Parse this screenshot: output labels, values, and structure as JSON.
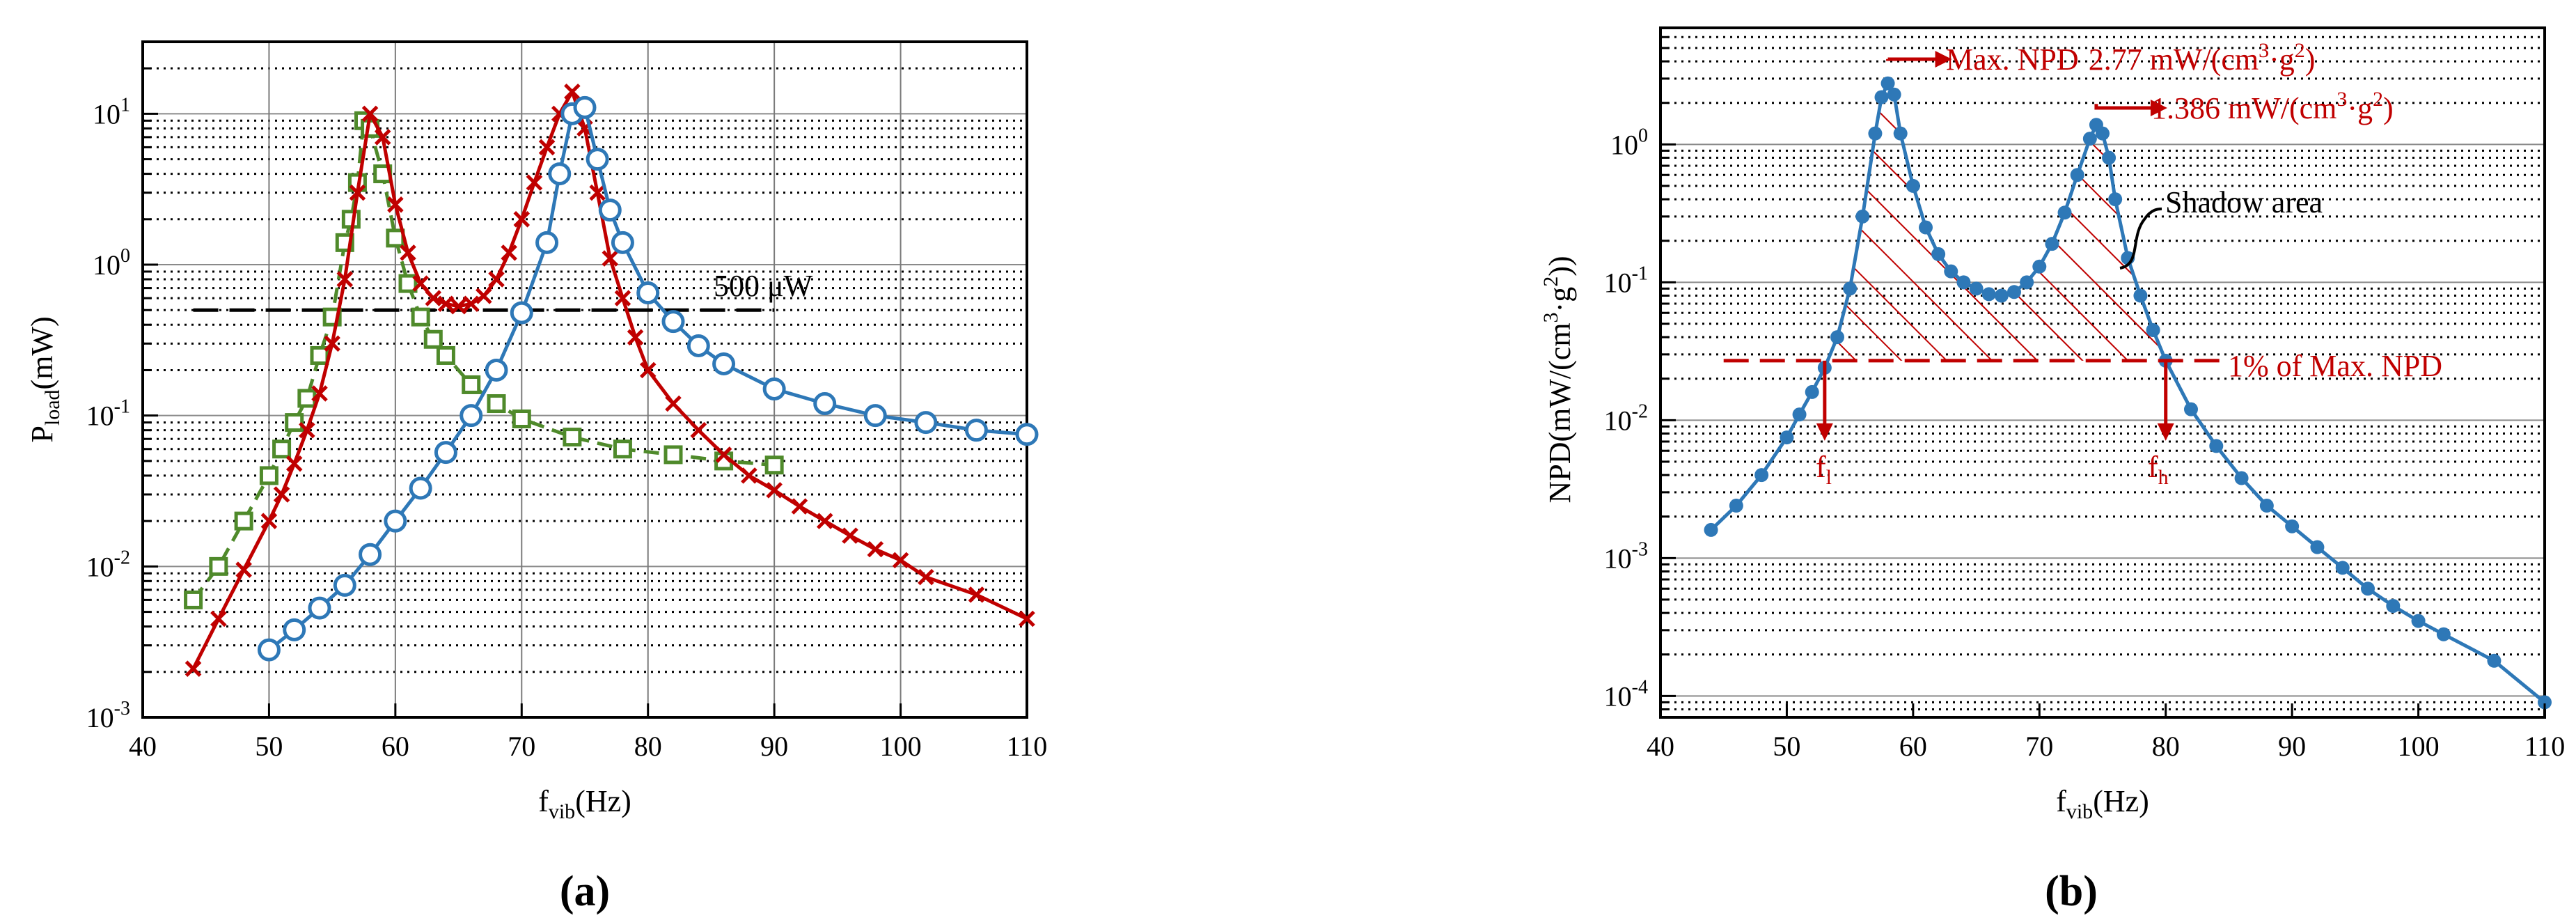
{
  "chart_data": [
    {
      "type": "line",
      "panel_label": "(a)",
      "xlabel": "f_vib (Hz)",
      "xlabel_main": "f",
      "xlabel_sub": "vib",
      "xlabel_unit": "(Hz)",
      "ylabel_main": "P",
      "ylabel_sub": "load",
      "ylabel_unit": "(mW)",
      "yscale": "log",
      "xlim": [
        40,
        110
      ],
      "ylim": [
        0.001,
        30
      ],
      "xticks": [
        "40",
        "50",
        "60",
        "70",
        "80",
        "90",
        "100",
        "110"
      ],
      "yticks": [
        {
          "base": "10",
          "exp": "-3"
        },
        {
          "base": "10",
          "exp": "-2"
        },
        {
          "base": "10",
          "exp": "-1"
        },
        {
          "base": "10",
          "exp": "0"
        },
        {
          "base": "10",
          "exp": "1"
        }
      ],
      "reference_line": {
        "value": 0.5,
        "label": "500 μW",
        "color": "#000000"
      },
      "series": [
        {
          "name": "series-blue-circle",
          "color": "#2e78b7",
          "marker": "circle",
          "x": [
            50,
            52,
            54,
            56,
            58,
            60,
            62,
            64,
            66,
            68,
            70,
            72,
            73,
            74,
            75,
            76,
            77,
            78,
            80,
            82,
            84,
            86,
            90,
            94,
            98,
            102,
            106,
            110
          ],
          "y": [
            0.0028,
            0.0038,
            0.0053,
            0.0075,
            0.012,
            0.02,
            0.033,
            0.057,
            0.1,
            0.2,
            0.48,
            1.4,
            4,
            10,
            11,
            5,
            2.3,
            1.4,
            0.65,
            0.42,
            0.29,
            0.22,
            0.15,
            0.12,
            0.1,
            0.09,
            0.08,
            0.075
          ]
        },
        {
          "name": "series-red-cross",
          "color": "#c00000",
          "marker": "x",
          "x": [
            44,
            46,
            48,
            50,
            51,
            52,
            53,
            54,
            55,
            56,
            57,
            58,
            59,
            60,
            61,
            62,
            63,
            64,
            65,
            66,
            67,
            68,
            69,
            70,
            71,
            72,
            73,
            74,
            75,
            76,
            77,
            78,
            79,
            80,
            82,
            84,
            86,
            88,
            90,
            92,
            94,
            96,
            98,
            100,
            102,
            106,
            110
          ],
          "y": [
            0.0021,
            0.0045,
            0.0095,
            0.02,
            0.03,
            0.048,
            0.08,
            0.14,
            0.3,
            0.8,
            3,
            10,
            7,
            2.5,
            1.2,
            0.75,
            0.6,
            0.55,
            0.53,
            0.55,
            0.62,
            0.8,
            1.2,
            2,
            3.5,
            6,
            10,
            14,
            8,
            3,
            1.1,
            0.6,
            0.33,
            0.2,
            0.12,
            0.08,
            0.055,
            0.04,
            0.032,
            0.025,
            0.02,
            0.016,
            0.013,
            0.011,
            0.0085,
            0.0065,
            0.0045
          ]
        },
        {
          "name": "series-green-square",
          "color": "#4f8a2b",
          "marker": "square",
          "x": [
            44,
            46,
            48,
            50,
            51,
            52,
            53,
            54,
            55,
            56,
            56.5,
            57,
            57.5,
            58,
            59,
            60,
            61,
            62,
            63,
            64,
            66,
            68,
            70,
            74,
            78,
            82,
            86,
            90
          ],
          "y": [
            0.006,
            0.01,
            0.02,
            0.04,
            0.06,
            0.09,
            0.13,
            0.25,
            0.45,
            1.4,
            2,
            3.5,
            9,
            8,
            4,
            1.5,
            0.75,
            0.45,
            0.32,
            0.25,
            0.16,
            0.12,
            0.095,
            0.072,
            0.06,
            0.055,
            0.05,
            0.047
          ]
        }
      ]
    },
    {
      "type": "line",
      "panel_label": "(b)",
      "xlabel_main": "f",
      "xlabel_sub": "vib",
      "xlabel_unit": "(Hz)",
      "ylabel": "NPD(mW/(cm^3·g^2))",
      "ylabel_main": "NPD(mW/(cm",
      "ylabel_mid": "·g",
      "ylabel_end": "))",
      "ylabel_sup1": "3",
      "ylabel_sup2": "2",
      "yscale": "log",
      "xlim": [
        40,
        110
      ],
      "ylim": [
        7e-05,
        7
      ],
      "xticks": [
        "40",
        "50",
        "60",
        "70",
        "80",
        "90",
        "100",
        "110"
      ],
      "yticks": [
        {
          "base": "10",
          "exp": "-4"
        },
        {
          "base": "10",
          "exp": "-3"
        },
        {
          "base": "10",
          "exp": "-2"
        },
        {
          "base": "10",
          "exp": "-1"
        },
        {
          "base": "10",
          "exp": "0"
        }
      ],
      "threshold": {
        "value": 0.027,
        "label": "1% of Max. NPD"
      },
      "annotations": {
        "max1_prefix": "Max. NPD",
        "max1_value": "2.77 mW/(cm",
        "max1_sup1": "3",
        "max1_mid": "·g",
        "max1_sup2": "2",
        "max1_end": ")",
        "max2_value": "1.386 mW/(cm",
        "max2_sup1": "3",
        "max2_mid": "·g",
        "max2_sup2": "2",
        "max2_end": ")",
        "shadow_label": "Shadow area",
        "fl_main": "f",
        "fl_sub": "l",
        "fh_main": "f",
        "fh_sub": "h",
        "fl_x": 53,
        "fh_x": 80,
        "peak1_x": 58,
        "peak1_y": 2.77,
        "peak2_x": 74.5,
        "peak2_y": 1.386
      },
      "series": [
        {
          "name": "npd-blue",
          "color": "#2e78b7",
          "marker": "dot",
          "x": [
            44,
            46,
            48,
            50,
            51,
            52,
            53,
            54,
            55,
            56,
            57,
            57.5,
            58,
            58.5,
            59,
            60,
            61,
            62,
            63,
            64,
            65,
            66,
            67,
            68,
            69,
            70,
            71,
            72,
            73,
            74,
            74.5,
            75,
            75.5,
            76,
            77,
            78,
            79,
            80,
            82,
            84,
            86,
            88,
            90,
            92,
            94,
            96,
            98,
            100,
            102,
            106,
            110
          ],
          "y": [
            0.0016,
            0.0024,
            0.004,
            0.0075,
            0.011,
            0.016,
            0.024,
            0.04,
            0.09,
            0.3,
            1.2,
            2.2,
            2.77,
            2.3,
            1.2,
            0.5,
            0.25,
            0.16,
            0.12,
            0.1,
            0.09,
            0.082,
            0.08,
            0.085,
            0.1,
            0.13,
            0.19,
            0.32,
            0.6,
            1.1,
            1.386,
            1.2,
            0.8,
            0.4,
            0.15,
            0.08,
            0.045,
            0.027,
            0.012,
            0.0065,
            0.0038,
            0.0024,
            0.0017,
            0.0012,
            0.00085,
            0.0006,
            0.00045,
            0.00035,
            0.00028,
            0.00018,
            9e-05
          ]
        }
      ]
    }
  ]
}
